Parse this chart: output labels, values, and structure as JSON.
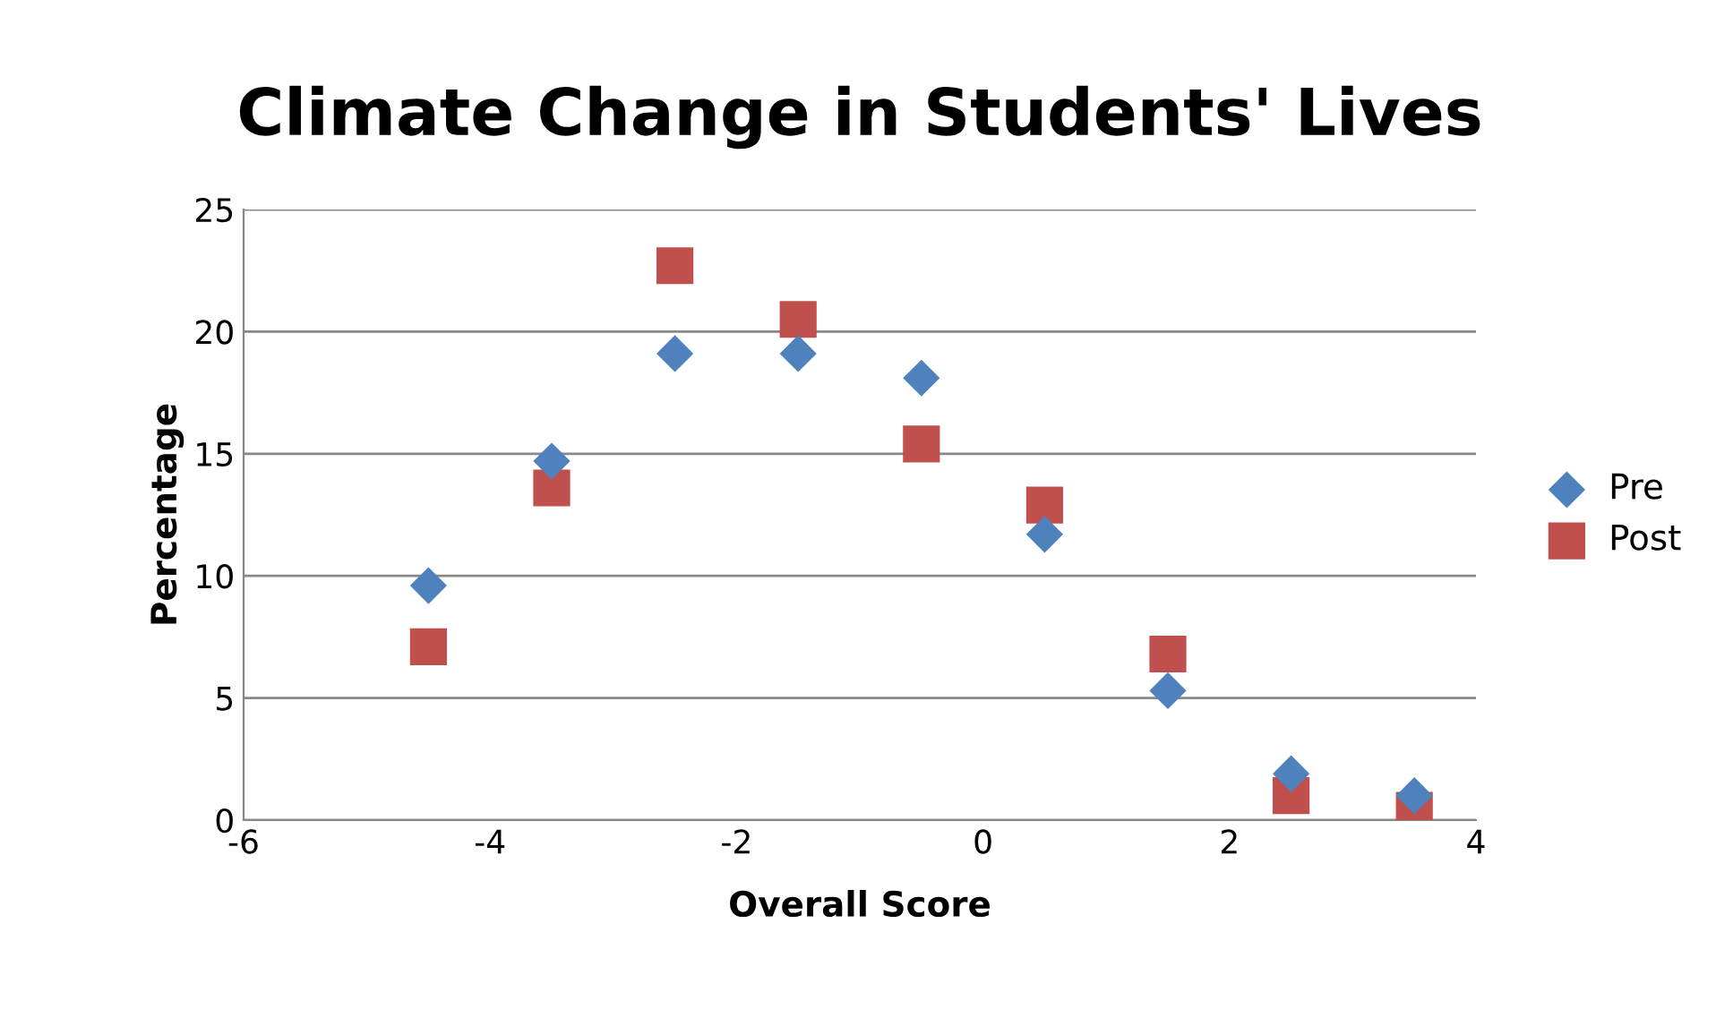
{
  "chart_data": {
    "type": "scatter",
    "title": "Climate Change in Students' Lives",
    "xlabel": "Overall Score",
    "ylabel": "Percentage",
    "x": [
      -4.5,
      -3.5,
      -2.5,
      -1.5,
      -0.5,
      0.5,
      1.5,
      2.5,
      3.5
    ],
    "series": [
      {
        "name": "Pre",
        "color": "#4f81bd",
        "marker": "diamond",
        "values": [
          9.6,
          14.7,
          19.1,
          19.1,
          18.1,
          11.7,
          5.3,
          1.9,
          1.0
        ]
      },
      {
        "name": "Post",
        "color": "#c0504d",
        "marker": "square",
        "values": [
          7.1,
          13.6,
          22.7,
          20.5,
          15.4,
          12.9,
          6.8,
          1.0,
          0.4
        ]
      }
    ],
    "xlim": [
      -6,
      4
    ],
    "xticks": [
      -6,
      -4,
      -2,
      0,
      2,
      4
    ],
    "ylim": [
      0,
      25
    ],
    "yticks": [
      0,
      5,
      10,
      15,
      20,
      25
    ],
    "grid": "y",
    "legend": "right"
  }
}
